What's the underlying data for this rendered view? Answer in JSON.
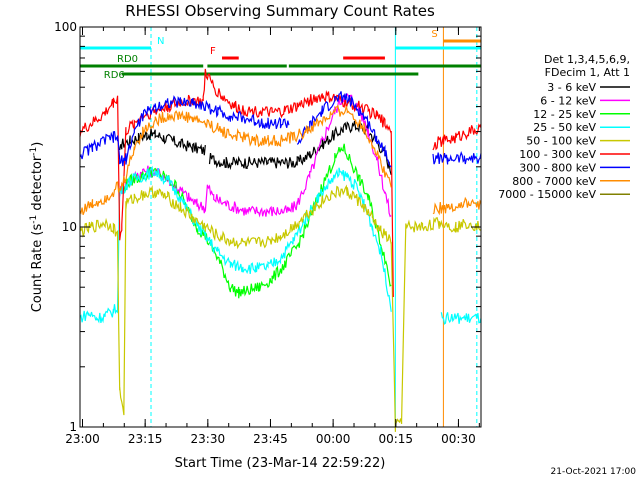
{
  "chart_data": {
    "type": "line",
    "title": "RHESSI Observing Summary Count Rates",
    "xlabel": "Start Time (23-Mar-14 22:59:22)",
    "ylabel_parts": [
      "Count Rate (s",
      "-1",
      " detector",
      "-1",
      ")"
    ],
    "y_scale": "log",
    "ylim": [
      1,
      100
    ],
    "y_ticks": [
      1,
      10,
      100
    ],
    "x_range_minutes": [
      0,
      96
    ],
    "x_ticks": [
      {
        "label": "23:00",
        "min": 0.6
      },
      {
        "label": "23:15",
        "min": 15.6
      },
      {
        "label": "23:30",
        "min": 30.6
      },
      {
        "label": "23:45",
        "min": 45.6
      },
      {
        "label": "00:00",
        "min": 60.6
      },
      {
        "label": "00:15",
        "min": 75.6
      },
      {
        "label": "00:30",
        "min": 90.6
      }
    ],
    "legend_header": [
      "Det 1,3,4,5,6,9,",
      "FDecim 1, Att 1"
    ],
    "series": [
      {
        "name": "3 - 6 keV",
        "color": "#000000",
        "points": [
          [
            0,
            null
          ],
          [
            9,
            null
          ],
          [
            9.5,
            23
          ],
          [
            10,
            26
          ],
          [
            12,
            27
          ],
          [
            14,
            28
          ],
          [
            16,
            29
          ],
          [
            18,
            29
          ],
          [
            20,
            28
          ],
          [
            22,
            27
          ],
          [
            24,
            26
          ],
          [
            27,
            25
          ],
          [
            30,
            24
          ],
          [
            30.5,
            null
          ],
          [
            31,
            22
          ],
          [
            35,
            21
          ],
          [
            40,
            21
          ],
          [
            45,
            21
          ],
          [
            50,
            21
          ],
          [
            52,
            21
          ],
          [
            55,
            23
          ],
          [
            58,
            26
          ],
          [
            61,
            29
          ],
          [
            63,
            31
          ],
          [
            65,
            32
          ],
          [
            67,
            32
          ],
          [
            69,
            30
          ],
          [
            71,
            27
          ],
          [
            73,
            23
          ],
          [
            74.5,
            19
          ],
          [
            75.5,
            null
          ],
          [
            96,
            null
          ]
        ]
      },
      {
        "name": "6 - 12 keV",
        "color": "#ff00ff",
        "points": [
          [
            0,
            null
          ],
          [
            9,
            null
          ],
          [
            9.5,
            15
          ],
          [
            12,
            17
          ],
          [
            15,
            19
          ],
          [
            17,
            19
          ],
          [
            20,
            18
          ],
          [
            23,
            16
          ],
          [
            26,
            14
          ],
          [
            28,
            13
          ],
          [
            30,
            12.5
          ],
          [
            30.5,
            16
          ],
          [
            32,
            14
          ],
          [
            35,
            13
          ],
          [
            40,
            12
          ],
          [
            45,
            12
          ],
          [
            50,
            12
          ],
          [
            52,
            13
          ],
          [
            55,
            18
          ],
          [
            58,
            27
          ],
          [
            61,
            38
          ],
          [
            63,
            45
          ],
          [
            65,
            44
          ],
          [
            67,
            38
          ],
          [
            69,
            30
          ],
          [
            71,
            22
          ],
          [
            73,
            15
          ],
          [
            74.5,
            11
          ],
          [
            75.5,
            null
          ],
          [
            96,
            null
          ]
        ]
      },
      {
        "name": "12 - 25 keV",
        "color": "#00ff00",
        "points": [
          [
            0,
            null
          ],
          [
            9,
            null
          ],
          [
            9.5,
            15
          ],
          [
            12,
            17
          ],
          [
            15,
            18
          ],
          [
            17,
            19
          ],
          [
            20,
            18
          ],
          [
            23,
            16
          ],
          [
            26,
            12
          ],
          [
            28,
            10
          ],
          [
            30,
            9
          ],
          [
            33,
            7
          ],
          [
            36,
            5
          ],
          [
            38,
            4.7
          ],
          [
            40,
            4.8
          ],
          [
            43,
            5
          ],
          [
            46,
            5.5
          ],
          [
            49,
            6.5
          ],
          [
            52,
            8
          ],
          [
            55,
            11
          ],
          [
            58,
            16
          ],
          [
            61,
            22
          ],
          [
            63,
            25
          ],
          [
            65,
            21
          ],
          [
            67,
            17
          ],
          [
            69,
            14
          ],
          [
            71,
            10
          ],
          [
            73,
            7
          ],
          [
            74.5,
            5
          ],
          [
            75.5,
            null
          ],
          [
            96,
            null
          ]
        ]
      },
      {
        "name": "25 - 50 keV",
        "color": "#00ffff",
        "points": [
          [
            0,
            3.5
          ],
          [
            2,
            3.7
          ],
          [
            4,
            3.5
          ],
          [
            6,
            3.6
          ],
          [
            8,
            3.8
          ],
          [
            9,
            4
          ],
          [
            9.5,
            15
          ],
          [
            12,
            17
          ],
          [
            15,
            18
          ],
          [
            18,
            19
          ],
          [
            21,
            17
          ],
          [
            24,
            14
          ],
          [
            27,
            11
          ],
          [
            30,
            9
          ],
          [
            33,
            7.5
          ],
          [
            36,
            6.5
          ],
          [
            39,
            6.3
          ],
          [
            42,
            6.2
          ],
          [
            45,
            6.3
          ],
          [
            48,
            7
          ],
          [
            51,
            8.5
          ],
          [
            54,
            11
          ],
          [
            57,
            14
          ],
          [
            60,
            17
          ],
          [
            62,
            18.5
          ],
          [
            64,
            18
          ],
          [
            66,
            16
          ],
          [
            68,
            13
          ],
          [
            70,
            10
          ],
          [
            72,
            7.5
          ],
          [
            74.5,
            4
          ],
          [
            75.5,
            null
          ],
          [
            86,
            null
          ],
          [
            86.5,
            3.5
          ],
          [
            96,
            3.5
          ]
        ]
      },
      {
        "name": "50 - 100 keV",
        "color": "#c8c800",
        "points": [
          [
            0,
            9.5
          ],
          [
            3,
            10
          ],
          [
            6,
            10.5
          ],
          [
            8,
            10
          ],
          [
            9,
            9
          ],
          [
            9.5,
            1.5
          ],
          [
            10.5,
            1.2
          ],
          [
            11,
            13
          ],
          [
            13,
            14
          ],
          [
            15,
            14.5
          ],
          [
            18,
            15
          ],
          [
            21,
            14
          ],
          [
            24,
            12.5
          ],
          [
            27,
            11
          ],
          [
            30,
            10
          ],
          [
            33,
            9
          ],
          [
            36,
            8.5
          ],
          [
            39,
            8.3
          ],
          [
            42,
            8.3
          ],
          [
            45,
            8.5
          ],
          [
            48,
            9
          ],
          [
            51,
            10
          ],
          [
            54,
            11.5
          ],
          [
            57,
            13
          ],
          [
            60,
            14.5
          ],
          [
            62,
            15
          ],
          [
            64,
            15
          ],
          [
            66,
            14
          ],
          [
            68,
            12.5
          ],
          [
            70,
            11
          ],
          [
            72,
            9.5
          ],
          [
            74.5,
            8.5
          ],
          [
            75.5,
            1
          ],
          [
            77,
            1.1
          ],
          [
            78,
            10
          ],
          [
            82,
            10
          ],
          [
            86,
            10.5
          ],
          [
            90,
            10
          ],
          [
            93,
            10.5
          ],
          [
            96,
            10
          ]
        ]
      },
      {
        "name": "100 - 300 keV",
        "color": "#ff0000",
        "points": [
          [
            0,
            30
          ],
          [
            3,
            33
          ],
          [
            6,
            37
          ],
          [
            8,
            42
          ],
          [
            9,
            45
          ],
          [
            9.5,
            9
          ],
          [
            10,
            10
          ],
          [
            11,
            30
          ],
          [
            13,
            33
          ],
          [
            15,
            36
          ],
          [
            18,
            38
          ],
          [
            21,
            40
          ],
          [
            24,
            42
          ],
          [
            27,
            43
          ],
          [
            29.5,
            42
          ],
          [
            30,
            60
          ],
          [
            32,
            50
          ],
          [
            34,
            45
          ],
          [
            37,
            40
          ],
          [
            40,
            38
          ],
          [
            43,
            38
          ],
          [
            46,
            37
          ],
          [
            49,
            38
          ],
          [
            52,
            40
          ],
          [
            55,
            43
          ],
          [
            58,
            45
          ],
          [
            61,
            44
          ],
          [
            63,
            42
          ],
          [
            65,
            41
          ],
          [
            67,
            40
          ],
          [
            69,
            38
          ],
          [
            71,
            36
          ],
          [
            73,
            33
          ],
          [
            74.5,
            31
          ],
          [
            75,
            4.5
          ],
          [
            75.5,
            null
          ],
          [
            84,
            null
          ],
          [
            84.5,
            26
          ],
          [
            87,
            27
          ],
          [
            90,
            28
          ],
          [
            93,
            30
          ],
          [
            96,
            31
          ]
        ]
      },
      {
        "name": "300 - 800 keV",
        "color": "#0000ff",
        "points": [
          [
            0,
            23
          ],
          [
            3,
            25
          ],
          [
            6,
            27
          ],
          [
            8,
            28
          ],
          [
            9,
            28
          ],
          [
            9.5,
            21
          ],
          [
            11,
            22
          ],
          [
            13,
            30
          ],
          [
            15,
            36
          ],
          [
            18,
            40
          ],
          [
            21,
            42
          ],
          [
            24,
            42
          ],
          [
            27,
            42
          ],
          [
            30,
            40
          ],
          [
            33,
            38
          ],
          [
            36,
            36
          ],
          [
            39,
            35
          ],
          [
            42,
            34
          ],
          [
            45,
            33
          ],
          [
            48,
            33
          ],
          [
            50,
            33
          ],
          [
            51,
            null
          ],
          [
            52,
            26
          ],
          [
            55,
            32
          ],
          [
            58,
            38
          ],
          [
            61,
            43
          ],
          [
            63,
            45
          ],
          [
            65,
            42
          ],
          [
            67,
            38
          ],
          [
            69,
            33
          ],
          [
            71,
            28
          ],
          [
            73,
            24
          ],
          [
            74.5,
            21
          ],
          [
            75.5,
            null
          ],
          [
            84,
            null
          ],
          [
            84.5,
            22
          ],
          [
            88,
            22
          ],
          [
            92,
            22
          ],
          [
            96,
            22
          ]
        ]
      },
      {
        "name": "800 - 7000 keV",
        "color": "#ff8c00",
        "points": [
          [
            0,
            12
          ],
          [
            3,
            13
          ],
          [
            6,
            14
          ],
          [
            8,
            15
          ],
          [
            9,
            16
          ],
          [
            9.5,
            15
          ],
          [
            11,
            18
          ],
          [
            13,
            25
          ],
          [
            15,
            30
          ],
          [
            18,
            34
          ],
          [
            21,
            36
          ],
          [
            24,
            36
          ],
          [
            27,
            35
          ],
          [
            30,
            33
          ],
          [
            33,
            31
          ],
          [
            36,
            29
          ],
          [
            39,
            28
          ],
          [
            42,
            27
          ],
          [
            45,
            27
          ],
          [
            48,
            27
          ],
          [
            51,
            28
          ],
          [
            54,
            30
          ],
          [
            57,
            33
          ],
          [
            60,
            36
          ],
          [
            62,
            38
          ],
          [
            64,
            38
          ],
          [
            66,
            35
          ],
          [
            68,
            31
          ],
          [
            70,
            26
          ],
          [
            72,
            21
          ],
          [
            74.5,
            16
          ],
          [
            75.5,
            null
          ],
          [
            84,
            null
          ],
          [
            84.5,
            12.5
          ],
          [
            88,
            12.5
          ],
          [
            92,
            13
          ],
          [
            96,
            13
          ]
        ]
      },
      {
        "name": "7000 - 15000 keV",
        "color": "#808000",
        "points": []
      }
    ],
    "mode_bars": [
      {
        "label": "N",
        "color": "#00ffff",
        "x0": 0,
        "x1": 17,
        "y": 48
      },
      {
        "label": "RD0",
        "color": "#008000",
        "x0": 0,
        "x1": 96,
        "y": 66,
        "gaps": [
          [
            29.5,
            30.5
          ],
          [
            49.5,
            50
          ]
        ]
      },
      {
        "label": "RD6",
        "color": "#008000",
        "x0": 10,
        "x1": 81,
        "y": 74
      },
      {
        "label": "F",
        "color": "#ff0000",
        "segments": [
          [
            34,
            38
          ],
          [
            63,
            73
          ]
        ],
        "y": 58
      },
      {
        "label": "S",
        "color": "#ff8c00",
        "segments": [
          [
            87,
            96
          ]
        ],
        "y": 41
      },
      {
        "label": "",
        "color": "#00ffff",
        "segments": [
          [
            75.5,
            96
          ]
        ],
        "y": 48
      }
    ],
    "vlines": [
      {
        "min": 17,
        "color": "#00ffff",
        "dash": true
      },
      {
        "min": 75.5,
        "color": "#00ffff",
        "dash": false
      },
      {
        "min": 87,
        "color": "#ff8c00",
        "dash": false
      },
      {
        "min": 95,
        "color": "#00ffff",
        "dash": true
      }
    ],
    "footer_date": "21-Oct-2021 17:00"
  }
}
